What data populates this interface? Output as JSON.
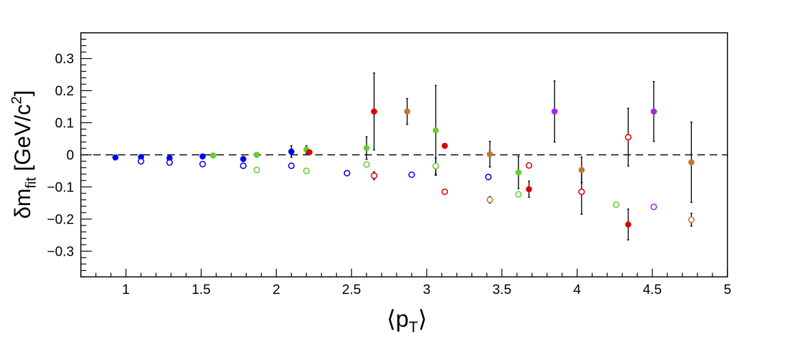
{
  "chart_data": {
    "type": "scatter",
    "xlabel_main": "⟨p",
    "xlabel_sub": "T",
    "xlabel_close": "⟩",
    "ylabel_main": "δm",
    "ylabel_sub": "fit",
    "ylabel_unit": " [GeV/c",
    "ylabel_sup": "2",
    "ylabel_close": "]",
    "xlim": [
      0.7,
      5.0
    ],
    "ylim": [
      -0.38,
      0.38
    ],
    "xticks": [
      {
        "v": 1,
        "label": "1"
      },
      {
        "v": 1.5,
        "label": "1.5"
      },
      {
        "v": 2,
        "label": "2"
      },
      {
        "v": 2.5,
        "label": "2.5"
      },
      {
        "v": 3,
        "label": "3"
      },
      {
        "v": 3.5,
        "label": "3.5"
      },
      {
        "v": 4,
        "label": "4"
      },
      {
        "v": 4.5,
        "label": "4.5"
      },
      {
        "v": 5,
        "label": "5"
      }
    ],
    "yticks": [
      {
        "v": -0.3,
        "label": "−0.3"
      },
      {
        "v": -0.2,
        "label": "−0.2"
      },
      {
        "v": -0.1,
        "label": "−0.1"
      },
      {
        "v": 0,
        "label": "0"
      },
      {
        "v": 0.1,
        "label": "0.1"
      },
      {
        "v": 0.2,
        "label": "0.2"
      },
      {
        "v": 0.3,
        "label": "0.3"
      }
    ],
    "reference_line_y": 0,
    "series": [
      {
        "color": "#0000ee",
        "filled": true,
        "points": [
          {
            "x": 0.93,
            "y": -0.008,
            "err": 0.003
          },
          {
            "x": 1.1,
            "y": -0.007,
            "err": 0.003
          },
          {
            "x": 1.29,
            "y": -0.01,
            "err": 0.003
          },
          {
            "x": 1.51,
            "y": -0.005,
            "err": 0.003
          },
          {
            "x": 1.78,
            "y": -0.013,
            "err": 0.004
          },
          {
            "x": 2.1,
            "y": 0.01,
            "err": 0.018
          }
        ]
      },
      {
        "color": "#0000ee",
        "filled": false,
        "points": [
          {
            "x": 1.1,
            "y": -0.02,
            "err": 0.002
          },
          {
            "x": 1.29,
            "y": -0.024,
            "err": 0.002
          },
          {
            "x": 1.51,
            "y": -0.029,
            "err": 0.002
          },
          {
            "x": 1.78,
            "y": -0.034,
            "err": 0.002
          },
          {
            "x": 2.1,
            "y": -0.034,
            "err": 0.002
          },
          {
            "x": 2.47,
            "y": -0.057,
            "err": 0.002
          },
          {
            "x": 2.9,
            "y": -0.062,
            "err": 0.002
          },
          {
            "x": 3.41,
            "y": -0.069,
            "err": 0.002
          }
        ]
      },
      {
        "color": "#66cc33",
        "filled": true,
        "points": [
          {
            "x": 1.58,
            "y": -0.002,
            "err": 0.003
          },
          {
            "x": 1.87,
            "y": 0.0,
            "err": 0.003
          },
          {
            "x": 2.2,
            "y": 0.016,
            "err": 0.012
          },
          {
            "x": 2.6,
            "y": 0.021,
            "err": 0.035
          },
          {
            "x": 3.06,
            "y": 0.076,
            "err": 0.14
          },
          {
            "x": 3.61,
            "y": -0.055,
            "err": 0.05
          }
        ]
      },
      {
        "color": "#66cc33",
        "filled": false,
        "points": [
          {
            "x": 1.87,
            "y": -0.047,
            "err": 0.002
          },
          {
            "x": 2.2,
            "y": -0.05,
            "err": 0.002
          },
          {
            "x": 2.6,
            "y": -0.03,
            "err": 0.003
          },
          {
            "x": 3.06,
            "y": -0.035,
            "err": 0.025
          },
          {
            "x": 3.61,
            "y": -0.123,
            "err": 0.002
          },
          {
            "x": 4.26,
            "y": -0.155,
            "err": 0.005
          }
        ]
      },
      {
        "color": "#dd0000",
        "filled": true,
        "points": [
          {
            "x": 2.22,
            "y": 0.008,
            "err": 0.007
          },
          {
            "x": 2.65,
            "y": 0.135,
            "err": 0.12
          },
          {
            "x": 3.12,
            "y": 0.028,
            "err": 0.003
          },
          {
            "x": 3.68,
            "y": -0.107,
            "err": 0.025
          },
          {
            "x": 4.34,
            "y": -0.217,
            "err": 0.048
          }
        ]
      },
      {
        "color": "#dd0000",
        "filled": false,
        "points": [
          {
            "x": 2.65,
            "y": -0.065,
            "err": 0.012
          },
          {
            "x": 3.12,
            "y": -0.115,
            "err": 0.003
          },
          {
            "x": 3.68,
            "y": -0.033,
            "err": 0.003
          },
          {
            "x": 4.03,
            "y": -0.115,
            "err": 0.07
          },
          {
            "x": 4.34,
            "y": 0.055,
            "err": 0.09
          }
        ]
      },
      {
        "color": "#c07a30",
        "filled": true,
        "points": [
          {
            "x": 2.87,
            "y": 0.135,
            "err": 0.04
          },
          {
            "x": 3.42,
            "y": 0.002,
            "err": 0.04
          },
          {
            "x": 4.03,
            "y": -0.047,
            "err": 0.04
          },
          {
            "x": 4.76,
            "y": -0.023,
            "err": 0.125
          }
        ]
      },
      {
        "color": "#c07a30",
        "filled": false,
        "points": [
          {
            "x": 3.42,
            "y": -0.14,
            "err": 0.01
          },
          {
            "x": 4.76,
            "y": -0.202,
            "err": 0.02
          }
        ]
      },
      {
        "color": "#aa22ee",
        "filled": true,
        "points": [
          {
            "x": 3.85,
            "y": 0.135,
            "err": 0.095
          },
          {
            "x": 4.51,
            "y": 0.135,
            "err": 0.093
          }
        ]
      },
      {
        "color": "#aa22ee",
        "filled": false,
        "points": [
          {
            "x": 4.51,
            "y": -0.162,
            "err": 0.002
          }
        ]
      }
    ]
  }
}
